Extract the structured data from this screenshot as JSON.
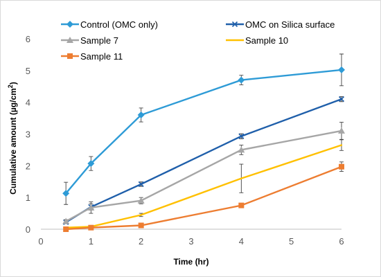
{
  "chart_data": {
    "type": "line",
    "title": "",
    "xlabel": "Time (hr)",
    "ylabel_main": "Cumulative amount (µg/cm",
    "ylabel_sup": "2",
    "ylabel_close": ")",
    "xlim": [
      0,
      6
    ],
    "ylim": [
      0,
      6
    ],
    "xticks": [
      0,
      1,
      2,
      3,
      4,
      5,
      6
    ],
    "yticks": [
      0,
      1,
      2,
      3,
      4,
      5,
      6
    ],
    "grid": false,
    "legend_position": "top",
    "x": [
      0.5,
      1,
      2,
      4,
      6
    ],
    "series": [
      {
        "name": "Control (OMC only)",
        "color": "#2E9BD6",
        "marker": "diamond",
        "values": [
          1.13,
          2.07,
          3.6,
          4.7,
          5.02
        ],
        "errors": [
          0.35,
          0.22,
          0.22,
          0.15,
          0.5
        ]
      },
      {
        "name": "OMC on Silica surface",
        "color": "#1F5FAA",
        "marker": "cross",
        "values": [
          0.22,
          0.7,
          1.42,
          2.93,
          4.1
        ],
        "errors": [
          0.05,
          0.1,
          0.07,
          0.08,
          0.08
        ]
      },
      {
        "name": "Sample 7",
        "color": "#A6A6A6",
        "marker": "triangle",
        "values": [
          0.25,
          0.68,
          0.9,
          2.5,
          3.1
        ],
        "errors": [
          0.05,
          0.18,
          0.1,
          0.15,
          0.27
        ]
      },
      {
        "name": "Sample 10",
        "color": "#FFC000",
        "marker": "none",
        "values": [
          0.05,
          0.08,
          0.45,
          1.6,
          2.65
        ],
        "errors": [
          0.02,
          0.03,
          0.05,
          0.45,
          0.17
        ]
      },
      {
        "name": "Sample 11",
        "color": "#ED7D31",
        "marker": "square",
        "values": [
          0.0,
          0.05,
          0.12,
          0.75,
          1.97
        ],
        "errors": [
          0.02,
          0.03,
          0.04,
          0.05,
          0.15
        ]
      }
    ]
  }
}
